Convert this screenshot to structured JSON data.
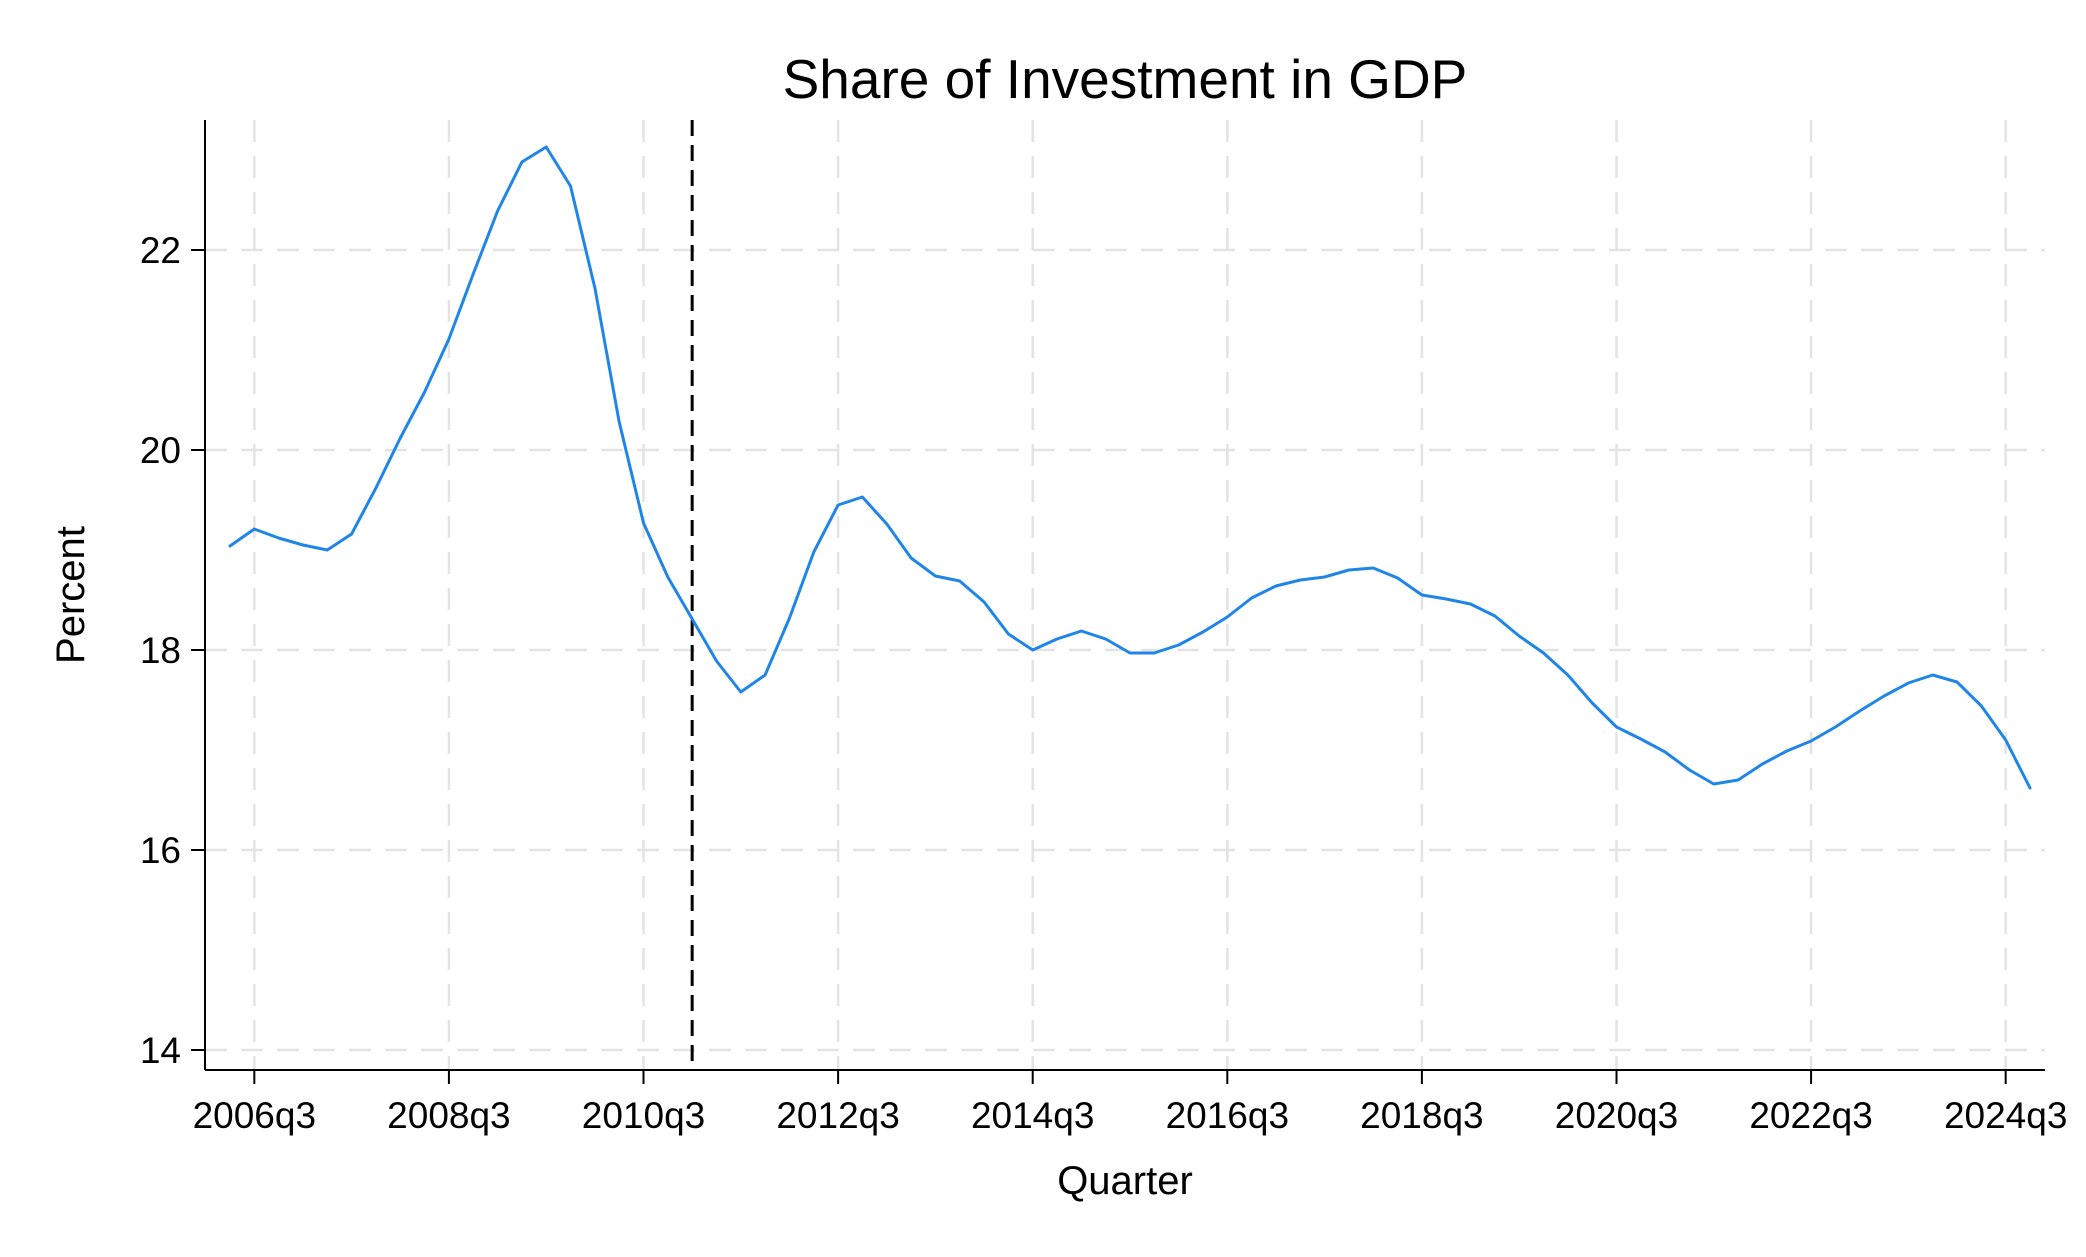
{
  "chart_data": {
    "type": "line",
    "title": "Share of Investment in GDP",
    "xlabel": "Quarter",
    "ylabel": "Percent",
    "x_ticks": [
      "2006q3",
      "2008q3",
      "2010q3",
      "2012q3",
      "2014q3",
      "2016q3",
      "2018q3",
      "2020q3",
      "2022q3",
      "2024q3"
    ],
    "y_ticks": [
      14,
      16,
      18,
      20,
      22
    ],
    "xlim": [
      "2006q2",
      "2024q4"
    ],
    "ylim": [
      13.8,
      23.3
    ],
    "grid": true,
    "reference_line": {
      "x": "2011q1",
      "style": "dashed",
      "color": "#000000"
    },
    "series": [
      {
        "color": "#1f86e8",
        "points": [
          [
            "2006q2",
            19.04
          ],
          [
            "2006q3",
            19.21
          ],
          [
            "2006q4",
            19.12
          ],
          [
            "2007q1",
            19.05
          ],
          [
            "2007q2",
            19.0
          ],
          [
            "2007q3",
            19.16
          ],
          [
            "2007q4",
            19.62
          ],
          [
            "2008q1",
            20.12
          ],
          [
            "2008q2",
            20.58
          ],
          [
            "2008q3",
            21.11
          ],
          [
            "2008q4",
            21.76
          ],
          [
            "2009q1",
            22.39
          ],
          [
            "2009q2",
            22.88
          ],
          [
            "2009q3",
            23.03
          ],
          [
            "2009q4",
            22.64
          ],
          [
            "2010q1",
            21.62
          ],
          [
            "2010q2",
            20.28
          ],
          [
            "2010q3",
            19.27
          ],
          [
            "2010q4",
            18.73
          ],
          [
            "2011q1",
            18.31
          ],
          [
            "2011q2",
            17.89
          ],
          [
            "2011q3",
            17.58
          ],
          [
            "2011q4",
            17.75
          ],
          [
            "2012q1",
            18.32
          ],
          [
            "2012q2",
            18.98
          ],
          [
            "2012q3",
            19.45
          ],
          [
            "2012q4",
            19.53
          ],
          [
            "2013q1",
            19.26
          ],
          [
            "2013q2",
            18.92
          ],
          [
            "2013q3",
            18.74
          ],
          [
            "2013q4",
            18.69
          ],
          [
            "2014q1",
            18.48
          ],
          [
            "2014q2",
            18.16
          ],
          [
            "2014q3",
            18.0
          ],
          [
            "2014q4",
            18.11
          ],
          [
            "2015q1",
            18.19
          ],
          [
            "2015q2",
            18.11
          ],
          [
            "2015q3",
            17.97
          ],
          [
            "2015q4",
            17.97
          ],
          [
            "2016q1",
            18.05
          ],
          [
            "2016q2",
            18.18
          ],
          [
            "2016q3",
            18.33
          ],
          [
            "2016q4",
            18.52
          ],
          [
            "2017q1",
            18.64
          ],
          [
            "2017q2",
            18.7
          ],
          [
            "2017q3",
            18.73
          ],
          [
            "2017q4",
            18.8
          ],
          [
            "2018q1",
            18.82
          ],
          [
            "2018q2",
            18.72
          ],
          [
            "2018q3",
            18.55
          ],
          [
            "2018q4",
            18.51
          ],
          [
            "2019q1",
            18.46
          ],
          [
            "2019q2",
            18.34
          ],
          [
            "2019q3",
            18.14
          ],
          [
            "2019q4",
            17.97
          ],
          [
            "2020q1",
            17.75
          ],
          [
            "2020q2",
            17.47
          ],
          [
            "2020q3",
            17.23
          ],
          [
            "2020q4",
            17.11
          ],
          [
            "2021q1",
            16.98
          ],
          [
            "2021q2",
            16.8
          ],
          [
            "2021q3",
            16.66
          ],
          [
            "2021q4",
            16.7
          ],
          [
            "2022q1",
            16.86
          ],
          [
            "2022q2",
            16.99
          ],
          [
            "2022q3",
            17.09
          ],
          [
            "2022q4",
            17.23
          ],
          [
            "2023q1",
            17.39
          ],
          [
            "2023q2",
            17.54
          ],
          [
            "2023q3",
            17.67
          ],
          [
            "2023q4",
            17.75
          ],
          [
            "2024q1",
            17.68
          ],
          [
            "2024q2",
            17.44
          ],
          [
            "2024q3",
            17.1
          ],
          [
            "2024q4",
            16.62
          ]
        ]
      }
    ]
  }
}
